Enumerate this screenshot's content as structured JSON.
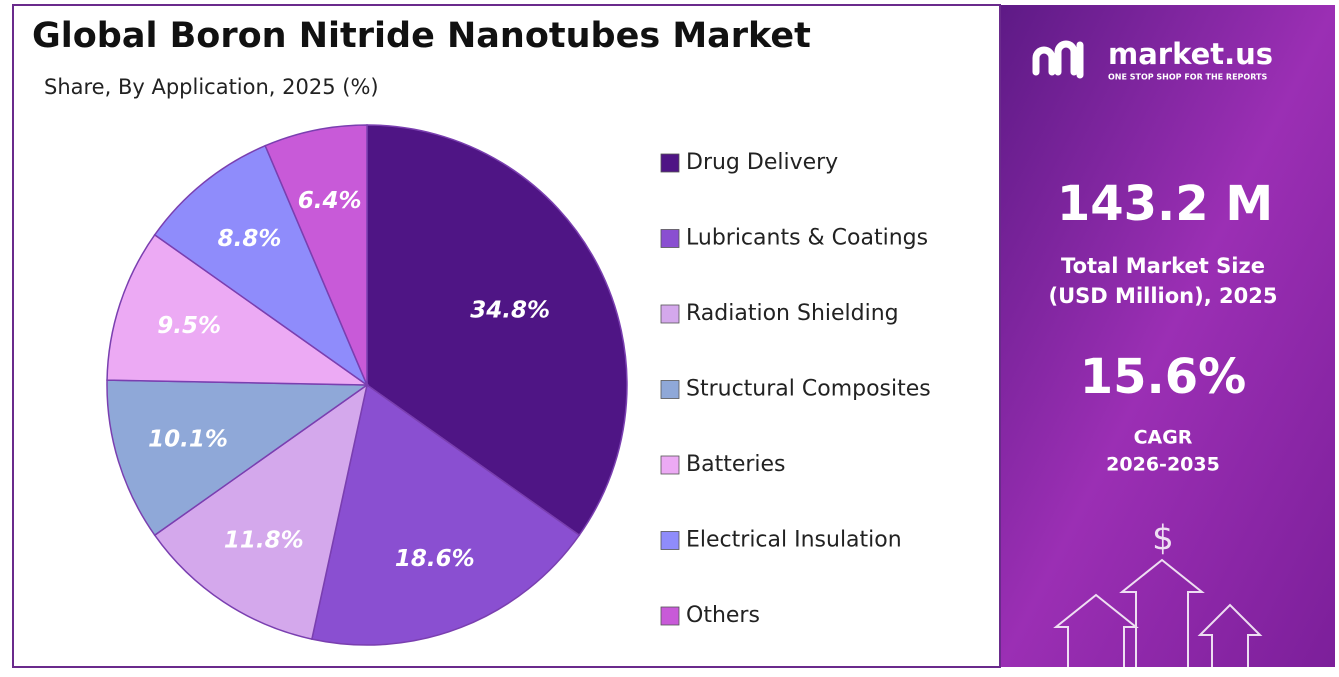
{
  "chart_data": {
    "type": "pie",
    "title": "Global Boron Nitride Nanotubes Market",
    "subtitle": "Share, By Application, 2025 (%)",
    "categories": [
      "Drug Delivery",
      "Lubricants & Coatings",
      "Radiation Shielding",
      "Structural Composites",
      "Batteries",
      "Electrical Insulation",
      "Others"
    ],
    "values": [
      34.8,
      18.6,
      11.8,
      10.1,
      9.5,
      8.8,
      6.4
    ],
    "value_labels": [
      "34.8%",
      "18.6%",
      "11.8%",
      "10.1%",
      "9.5%",
      "8.8%",
      "6.4%"
    ],
    "colors": [
      "#4f1585",
      "#8a4fd1",
      "#d4a8ec",
      "#8fa8d8",
      "#ecaaf4",
      "#8f8cfb",
      "#c85ad8"
    ],
    "legend": "right"
  },
  "panel": {
    "brand": "market.us",
    "tagline": "ONE STOP SHOP FOR THE REPORTS",
    "market_size": "143.2 M",
    "market_size_label": [
      "Total Market Size",
      "(USD Million), 2025"
    ],
    "cagr": "15.6%",
    "cagr_label": [
      "CAGR",
      "2026-2035"
    ]
  }
}
